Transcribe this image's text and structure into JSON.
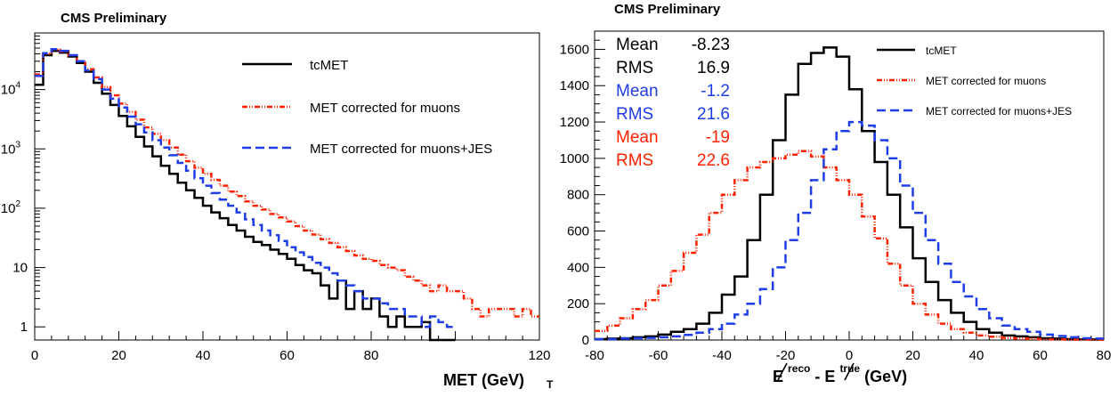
{
  "chart_data": [
    {
      "type": "line",
      "title": "CMS Preliminary",
      "xlabel": "MET (GeV)",
      "xlabel_sub": "T",
      "ylabel": "",
      "xscale": "linear",
      "yscale": "log",
      "xlim": [
        0,
        120
      ],
      "ylim": [
        0.6,
        90000
      ],
      "xticks": [
        0,
        20,
        40,
        60,
        80,
        120
      ],
      "xtick_labels": [
        "0",
        "20",
        "40",
        "60",
        "80",
        "120"
      ],
      "yticks": [
        1,
        10,
        100,
        1000,
        10000
      ],
      "ytick_labels": [
        {
          "base": "1",
          "exp": ""
        },
        {
          "base": "10",
          "exp": ""
        },
        {
          "base": "10",
          "exp": "2"
        },
        {
          "base": "10",
          "exp": "3"
        },
        {
          "base": "10",
          "exp": "4"
        }
      ],
      "grid": false,
      "legend_position": "top-right",
      "series": [
        {
          "name": "tcMET",
          "color": "#000000",
          "dash": "",
          "x": [
            0,
            2,
            4,
            6,
            8,
            10,
            12,
            14,
            16,
            18,
            20,
            22,
            24,
            26,
            28,
            30,
            32,
            34,
            36,
            38,
            40,
            42,
            44,
            46,
            48,
            50,
            52,
            54,
            56,
            58,
            60,
            62,
            64,
            66,
            68,
            70,
            72,
            74,
            76,
            78,
            80,
            82,
            84,
            86,
            88,
            90,
            92,
            94,
            96,
            98,
            100
          ],
          "y": [
            12000,
            38000,
            45000,
            42000,
            36000,
            28000,
            20000,
            13000,
            8500,
            5500,
            3600,
            2400,
            1600,
            1100,
            750,
            520,
            380,
            270,
            200,
            150,
            110,
            85,
            68,
            52,
            42,
            33,
            27,
            24,
            20,
            17,
            14,
            11,
            9,
            8,
            5,
            3,
            6,
            2,
            4,
            2,
            3,
            1.5,
            1,
            1.5,
            1,
            1,
            1.2,
            0.5,
            0.5,
            0.5,
            0.5
          ]
        },
        {
          "name": "MET corrected for muons",
          "color": "#ff2200",
          "dash": "6 2 1 2 1 2",
          "x": [
            0,
            2,
            4,
            6,
            8,
            10,
            12,
            14,
            16,
            18,
            20,
            22,
            24,
            26,
            28,
            30,
            32,
            34,
            36,
            38,
            40,
            42,
            44,
            46,
            48,
            50,
            52,
            54,
            56,
            58,
            60,
            62,
            64,
            66,
            68,
            70,
            72,
            74,
            76,
            78,
            80,
            82,
            84,
            86,
            88,
            90,
            92,
            94,
            96,
            98,
            100,
            102,
            104,
            106,
            108,
            110,
            112,
            114,
            116,
            118,
            120
          ],
          "y": [
            18000,
            40000,
            47000,
            44000,
            38000,
            30000,
            22000,
            16000,
            11000,
            8000,
            5800,
            4200,
            3100,
            2300,
            1800,
            1400,
            1050,
            800,
            620,
            480,
            380,
            300,
            240,
            190,
            160,
            130,
            110,
            95,
            80,
            70,
            60,
            50,
            42,
            36,
            30,
            26,
            22,
            19,
            16,
            14,
            13,
            11,
            10,
            9,
            7,
            6,
            5,
            4,
            5,
            4,
            4,
            3,
            2,
            1.5,
            2,
            2,
            2,
            1.5,
            2,
            1.5,
            1
          ]
        },
        {
          "name": "MET corrected for muons+JES",
          "color": "#1f3de6",
          "dash": "10 5",
          "x": [
            0,
            2,
            4,
            6,
            8,
            10,
            12,
            14,
            16,
            18,
            20,
            22,
            24,
            26,
            28,
            30,
            32,
            34,
            36,
            38,
            40,
            42,
            44,
            46,
            48,
            50,
            52,
            54,
            56,
            58,
            60,
            62,
            64,
            66,
            68,
            70,
            72,
            74,
            76,
            78,
            80,
            82,
            84,
            86,
            88,
            90,
            92,
            94,
            96,
            98,
            100
          ],
          "y": [
            17000,
            41000,
            48000,
            45000,
            38000,
            30000,
            21000,
            15000,
            10000,
            7000,
            5000,
            3500,
            2600,
            1900,
            1400,
            1050,
            780,
            580,
            430,
            320,
            240,
            180,
            140,
            110,
            85,
            65,
            52,
            42,
            35,
            28,
            22,
            18,
            15,
            12,
            10,
            8,
            6,
            5,
            4,
            3,
            3,
            2.5,
            2,
            2,
            1.5,
            1.5,
            1,
            1.5,
            1.2,
            1,
            1
          ]
        }
      ]
    },
    {
      "type": "line",
      "title": "CMS Preliminary",
      "xlabel_parts": {
        "pre": "E",
        "sup1": "reco",
        "mid": " - E",
        "sup2": "true",
        "post": " (GeV)"
      },
      "ylabel": "",
      "xlim": [
        -80,
        80
      ],
      "ylim": [
        0,
        1700
      ],
      "xticks": [
        -80,
        -60,
        -40,
        -20,
        0,
        20,
        40,
        60,
        80
      ],
      "yticks": [
        0,
        200,
        400,
        600,
        800,
        1000,
        1200,
        1400,
        1600
      ],
      "grid": false,
      "legend_position": "top-right",
      "stats": [
        {
          "label": "Mean",
          "value": "-8.23",
          "color": "#000000"
        },
        {
          "label": "RMS",
          "value": "16.9",
          "color": "#000000"
        },
        {
          "label": "Mean",
          "value": "-1.2",
          "color": "#1f3de6"
        },
        {
          "label": "RMS",
          "value": "21.6",
          "color": "#1f3de6"
        },
        {
          "label": "Mean",
          "value": "-19",
          "color": "#ff2200"
        },
        {
          "label": "RMS",
          "value": "22.6",
          "color": "#ff2200"
        }
      ],
      "series": [
        {
          "name": "tcMET",
          "color": "#000000",
          "dash": "",
          "x": [
            -80,
            -76,
            -72,
            -68,
            -64,
            -60,
            -56,
            -52,
            -48,
            -44,
            -40,
            -36,
            -32,
            -28,
            -24,
            -20,
            -16,
            -12,
            -8,
            -4,
            0,
            4,
            8,
            12,
            16,
            20,
            24,
            28,
            32,
            36,
            40,
            44,
            48,
            52,
            56,
            60,
            64,
            68,
            72,
            76,
            80
          ],
          "y": [
            5,
            8,
            10,
            15,
            20,
            30,
            45,
            60,
            90,
            150,
            250,
            350,
            550,
            800,
            1100,
            1350,
            1520,
            1580,
            1610,
            1560,
            1380,
            1150,
            980,
            800,
            620,
            450,
            320,
            220,
            150,
            100,
            60,
            40,
            25,
            20,
            15,
            10,
            8,
            5,
            4,
            3,
            2
          ]
        },
        {
          "name": "MET corrected for muons",
          "color": "#ff2200",
          "dash": "6 2 1 2 1 2",
          "x": [
            -80,
            -76,
            -72,
            -68,
            -64,
            -60,
            -56,
            -52,
            -48,
            -44,
            -40,
            -36,
            -32,
            -28,
            -24,
            -20,
            -16,
            -12,
            -8,
            -4,
            0,
            4,
            8,
            12,
            16,
            20,
            24,
            28,
            32,
            36,
            40,
            44,
            48,
            52,
            56,
            60,
            64,
            68,
            72,
            76,
            80
          ],
          "y": [
            50,
            80,
            120,
            170,
            220,
            300,
            380,
            480,
            580,
            700,
            800,
            880,
            950,
            980,
            1000,
            1020,
            1040,
            1010,
            950,
            880,
            800,
            680,
            560,
            420,
            300,
            200,
            140,
            90,
            60,
            40,
            25,
            18,
            12,
            8,
            6,
            4,
            3,
            2,
            2,
            1,
            1
          ]
        },
        {
          "name": "MET corrected for muons+JES",
          "color": "#1f3de6",
          "dash": "10 5",
          "x": [
            -80,
            -76,
            -72,
            -68,
            -64,
            -60,
            -56,
            -52,
            -48,
            -44,
            -40,
            -36,
            -32,
            -28,
            -24,
            -20,
            -16,
            -12,
            -8,
            -4,
            0,
            4,
            8,
            12,
            16,
            20,
            24,
            28,
            32,
            36,
            40,
            44,
            48,
            52,
            56,
            60,
            64,
            68,
            72,
            76,
            80
          ],
          "y": [
            5,
            5,
            8,
            10,
            12,
            15,
            20,
            28,
            40,
            60,
            90,
            140,
            200,
            280,
            400,
            550,
            700,
            880,
            1050,
            1150,
            1200,
            1180,
            1100,
            1000,
            850,
            700,
            550,
            420,
            320,
            240,
            170,
            120,
            80,
            60,
            45,
            30,
            22,
            15,
            10,
            8,
            5
          ]
        }
      ]
    }
  ]
}
